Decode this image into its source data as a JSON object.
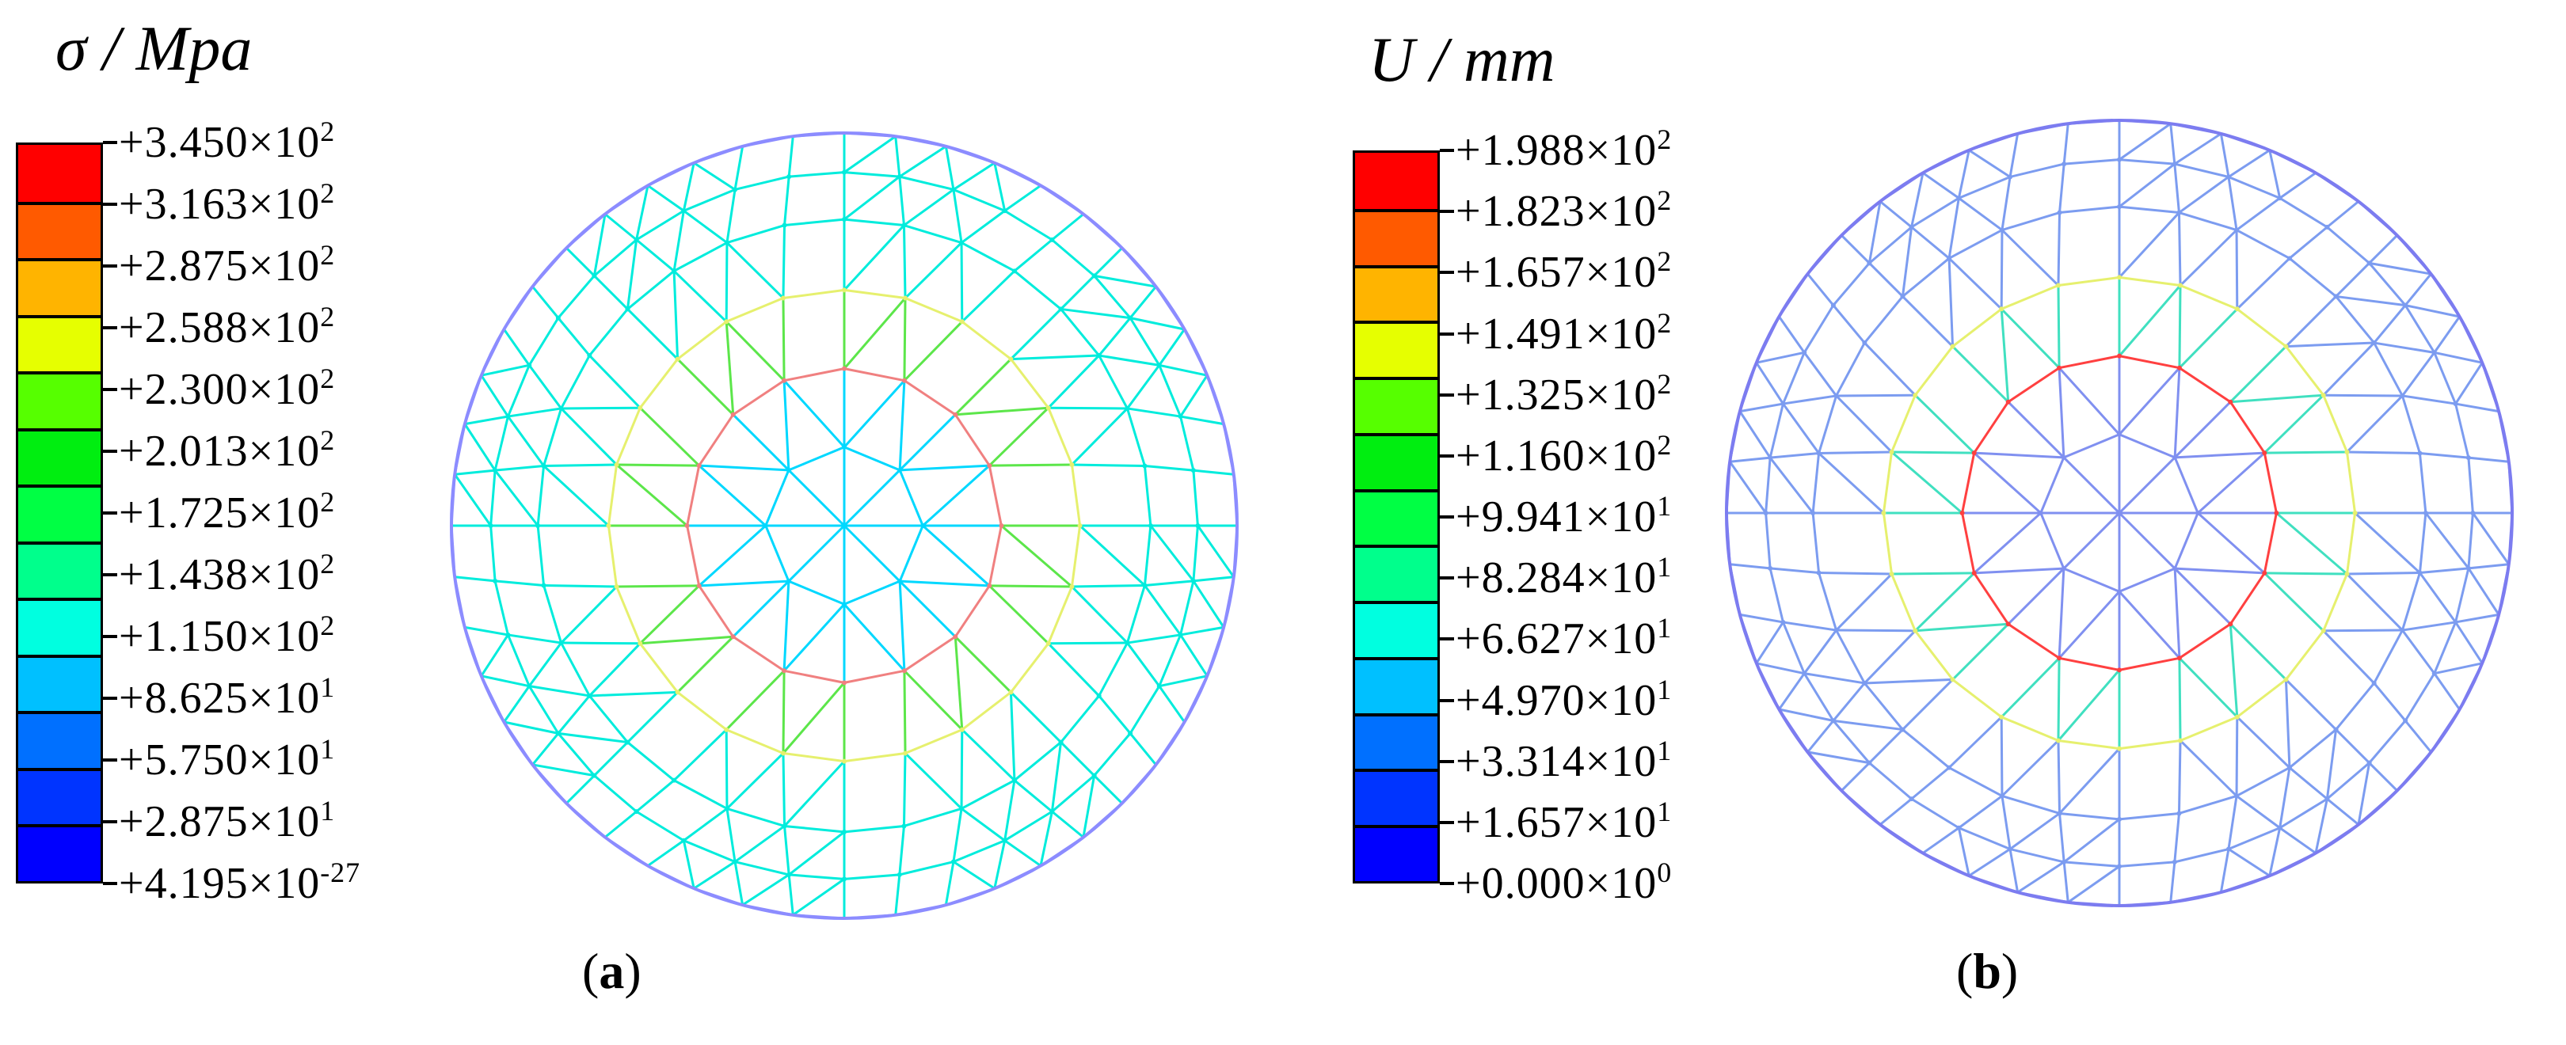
{
  "figure_a": {
    "legend_title": "σ / Mpa",
    "colors": [
      "#ff0000",
      "#ff5a00",
      "#ffb400",
      "#e6ff00",
      "#56ff00",
      "#00ee10",
      "#00ff44",
      "#00ff8c",
      "#00ffe0",
      "#00c0ff",
      "#0070ff",
      "#0034ff",
      "#0000ff"
    ],
    "ticks": [
      {
        "mant": "+3.450",
        "exp": "2"
      },
      {
        "mant": "+3.163",
        "exp": "2"
      },
      {
        "mant": "+2.875",
        "exp": "2"
      },
      {
        "mant": "+2.588",
        "exp": "2"
      },
      {
        "mant": "+2.300",
        "exp": "2"
      },
      {
        "mant": "+2.013",
        "exp": "2"
      },
      {
        "mant": "+1.725",
        "exp": "2"
      },
      {
        "mant": "+1.438",
        "exp": "2"
      },
      {
        "mant": "+1.150",
        "exp": "2"
      },
      {
        "mant": "+8.625",
        "exp": "1"
      },
      {
        "mant": "+5.750",
        "exp": "1"
      },
      {
        "mant": "+2.875",
        "exp": "1"
      },
      {
        "mant": "+4.195",
        "exp": "-27"
      }
    ],
    "panel_letter": "a",
    "mesh_colors": {
      "outer": "#8c8cff",
      "mid": "#00ecdc",
      "ring_inner": "#f08080",
      "ring_yellow": "#e6f06e",
      "green": "#5ce64a",
      "center": "#00d8ff"
    }
  },
  "figure_b": {
    "legend_title": "U / mm",
    "colors": [
      "#ff0000",
      "#ff5a00",
      "#ffb400",
      "#e6ff00",
      "#56ff00",
      "#00ee10",
      "#00ff44",
      "#00ff8c",
      "#00ffe0",
      "#00c0ff",
      "#0070ff",
      "#0034ff",
      "#0000ff"
    ],
    "ticks": [
      {
        "mant": "+1.988",
        "exp": "2"
      },
      {
        "mant": "+1.823",
        "exp": "2"
      },
      {
        "mant": "+1.657",
        "exp": "2"
      },
      {
        "mant": "+1.491",
        "exp": "2"
      },
      {
        "mant": "+1.325",
        "exp": "2"
      },
      {
        "mant": "+1.160",
        "exp": "2"
      },
      {
        "mant": "+9.941",
        "exp": "1"
      },
      {
        "mant": "+8.284",
        "exp": "1"
      },
      {
        "mant": "+6.627",
        "exp": "1"
      },
      {
        "mant": "+4.970",
        "exp": "1"
      },
      {
        "mant": "+3.314",
        "exp": "1"
      },
      {
        "mant": "+1.657",
        "exp": "1"
      },
      {
        "mant": "+0.000",
        "exp": "0"
      }
    ],
    "panel_letter": "b",
    "mesh_colors": {
      "outer": "#7c7cf0",
      "mid": "#7c9cf0",
      "ring_inner": "#ff4040",
      "ring_yellow": "#e6f06e",
      "green": "#40e0c0",
      "center": "#8090f0"
    }
  },
  "times_symbol": "×",
  "ten": "10",
  "paren_open": "(",
  "paren_close": ")"
}
